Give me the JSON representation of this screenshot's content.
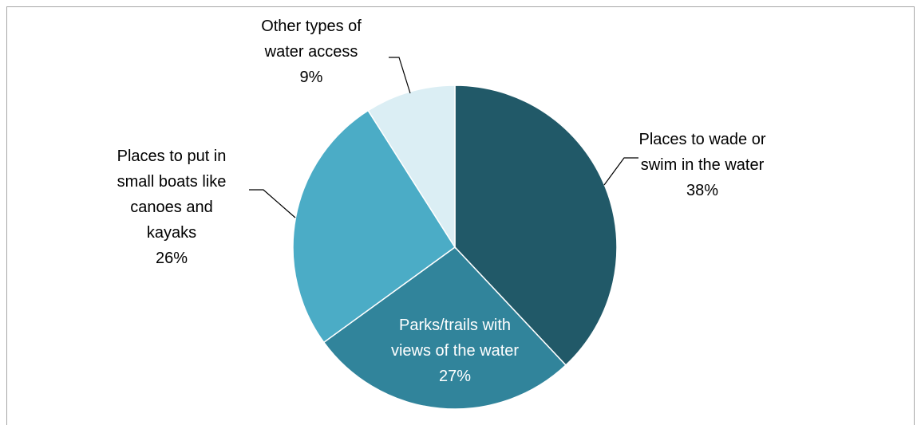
{
  "chart_data": {
    "type": "pie",
    "categories": [
      "Places to wade or\nswim in the water",
      "Parks/trails with\nviews of the water",
      "Places to put in\nsmall boats like\ncanoes and\nkayaks",
      "Other types of\nwater access"
    ],
    "values": [
      38,
      27,
      26,
      9
    ],
    "value_labels": [
      "38%",
      "27%",
      "26%",
      "9%"
    ],
    "colors": [
      "#215968",
      "#31849b",
      "#4bacc6",
      "#dbeef4"
    ]
  }
}
